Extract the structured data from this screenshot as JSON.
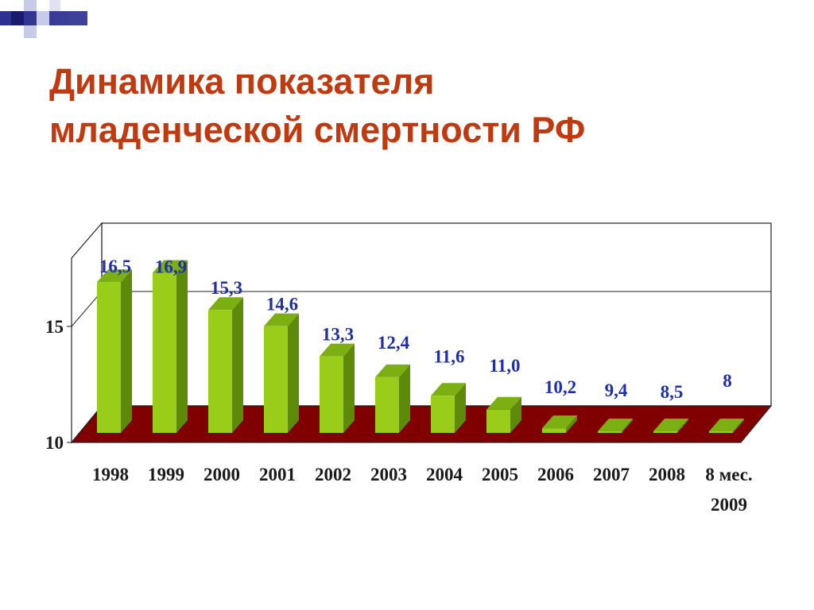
{
  "slide": {
    "title_line1": "Динамика показателя",
    "title_line2": "младенческой смертности РФ"
  },
  "chart_data": {
    "type": "bar",
    "categories": [
      "1998",
      "1999",
      "2000",
      "2001",
      "2002",
      "2003",
      "2004",
      "2005",
      "2006",
      "2007",
      "2008",
      "8 мес. 2009"
    ],
    "values": [
      16.5,
      16.9,
      15.3,
      14.6,
      13.3,
      12.4,
      11.6,
      11.0,
      10.2,
      9.4,
      8.5,
      8
    ],
    "data_labels": [
      "16,5",
      "16,9",
      "15,3",
      "14,6",
      "13,3",
      "12,4",
      "11,6",
      "11,0",
      "10,2",
      "9,4",
      "8,5",
      "8"
    ],
    "yticks": [
      "10",
      "15"
    ],
    "ylim": [
      10,
      17.5
    ],
    "grid": true,
    "legend": "none",
    "colors": {
      "bar_front": "#9acc1a",
      "bar_side": "#5e8a0a",
      "bar_top": "#7cb012",
      "floor": "#800000",
      "labels": "#1f2fa8",
      "title": "#c0390f"
    }
  }
}
